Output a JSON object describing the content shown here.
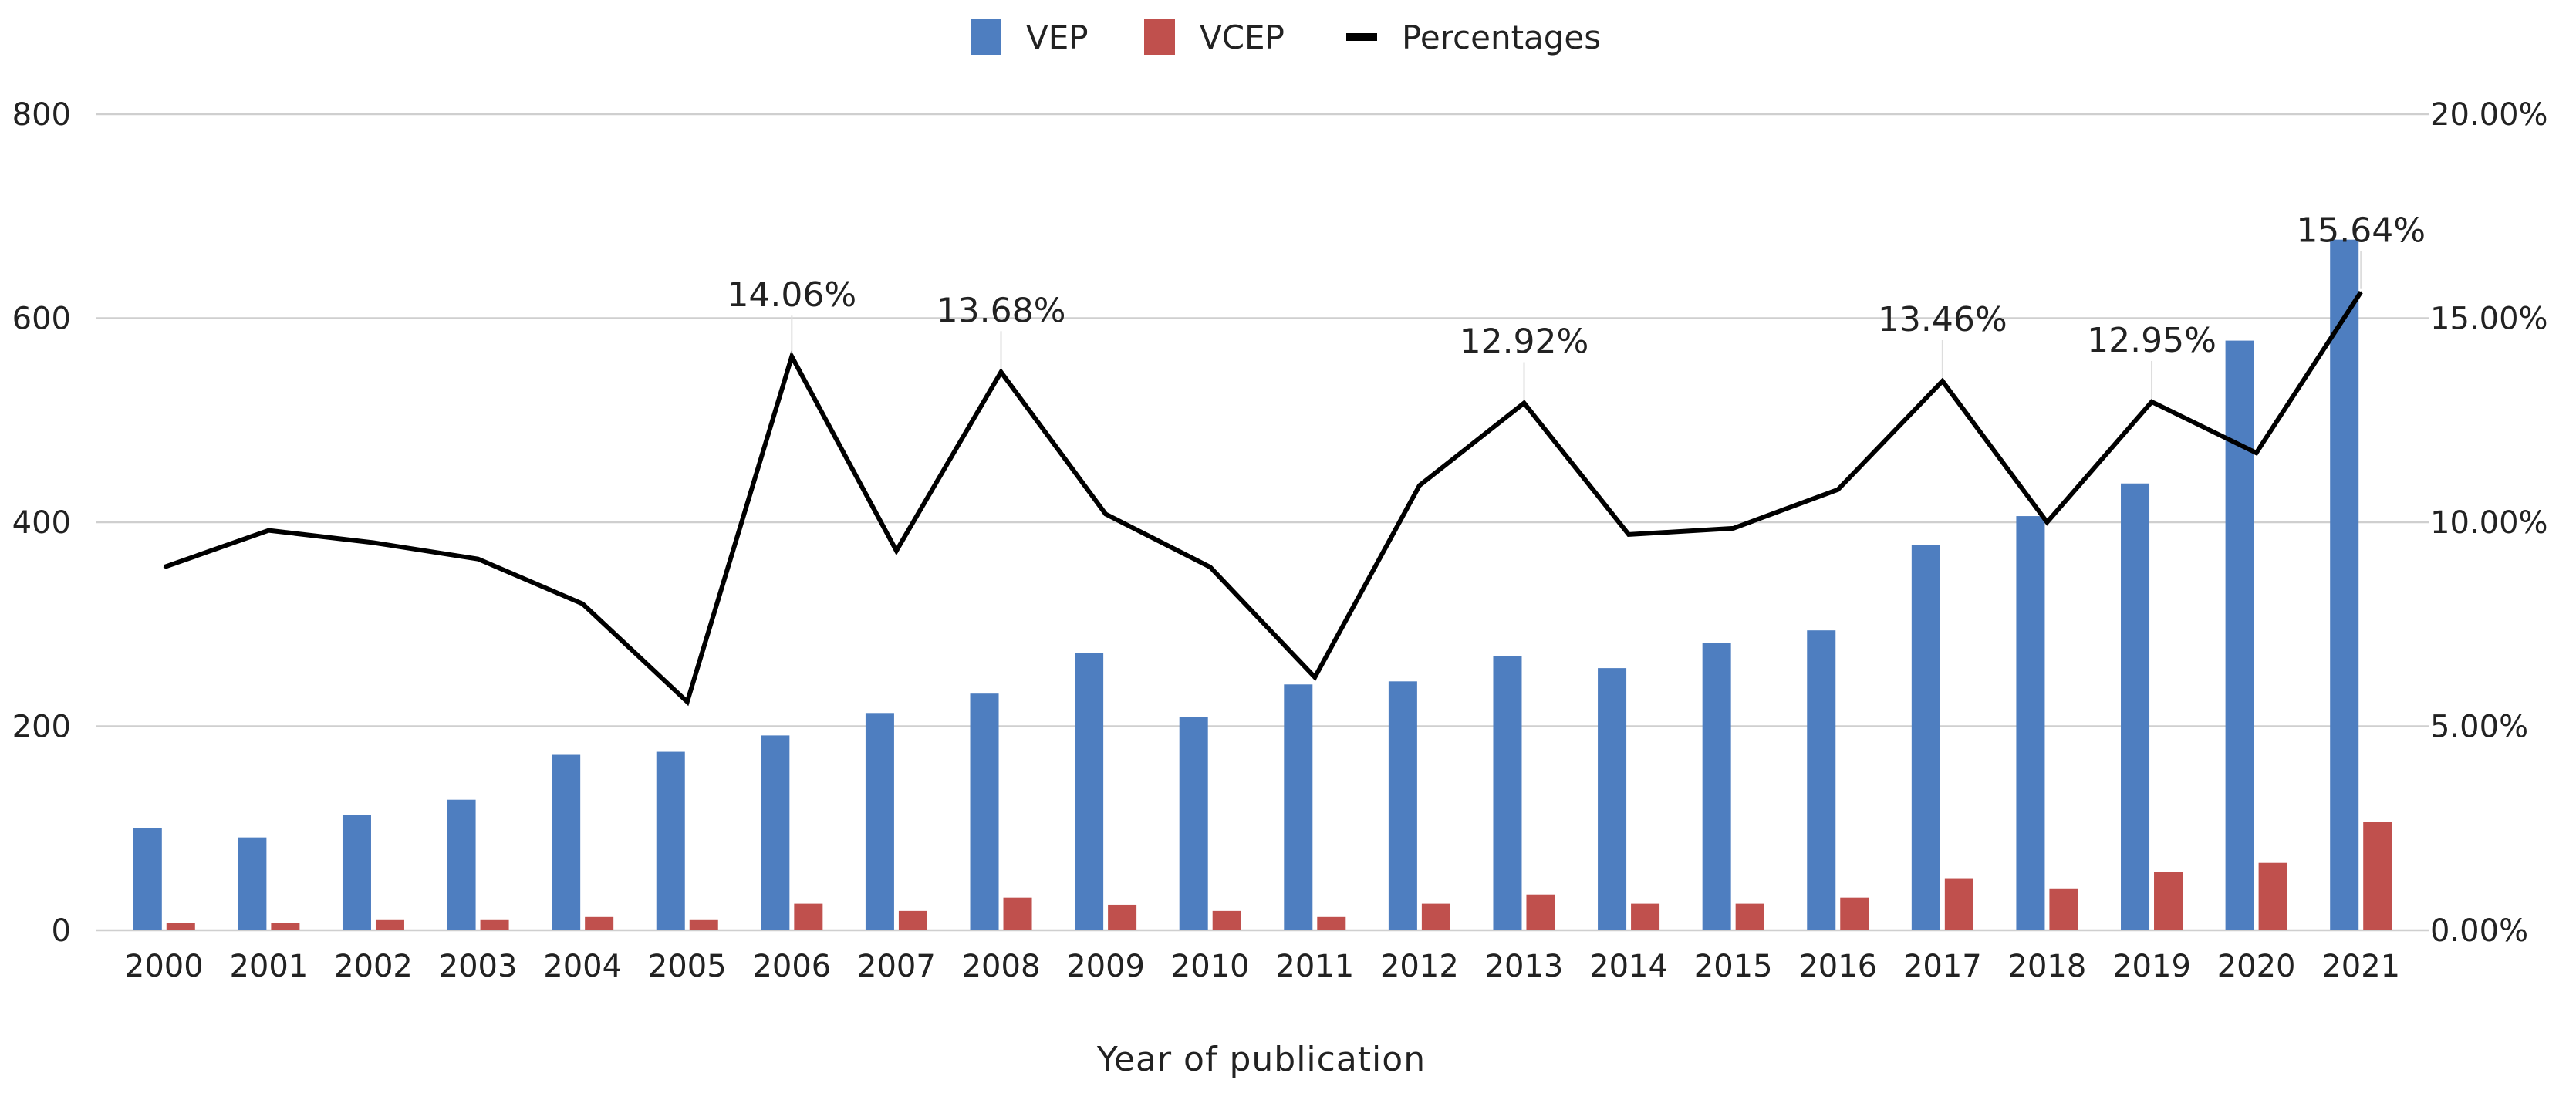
{
  "chart_data": {
    "type": "bar",
    "title": "",
    "xlabel": "Year of publication",
    "ylabel": "",
    "y2label": "",
    "categories": [
      "2000",
      "2001",
      "2002",
      "2003",
      "2004",
      "2005",
      "2006",
      "2007",
      "2008",
      "2009",
      "2010",
      "2011",
      "2012",
      "2013",
      "2014",
      "2015",
      "2016",
      "2017",
      "2018",
      "2019",
      "2020",
      "2021"
    ],
    "ylim": [
      0,
      800
    ],
    "yticks": [
      0,
      200,
      400,
      600,
      800
    ],
    "yticklabels": [
      "0",
      "200",
      "400",
      "600",
      "800"
    ],
    "y2lim": [
      0,
      20
    ],
    "y2ticks": [
      0,
      5,
      10,
      15,
      20
    ],
    "y2ticklabels": [
      "0.00%",
      "5.00%",
      "10.00%",
      "15.00%",
      "20.00%"
    ],
    "grid": true,
    "legend_position": "top-center",
    "series": [
      {
        "name": "VEP",
        "kind": "bar",
        "axis": "left",
        "color": "#4e7ec0",
        "values": [
          100,
          91,
          113,
          128,
          172,
          175,
          191,
          213,
          232,
          272,
          209,
          241,
          244,
          269,
          257,
          282,
          294,
          378,
          406,
          438,
          578,
          677
        ]
      },
      {
        "name": "VCEP",
        "kind": "bar",
        "axis": "left",
        "color": "#c0504d",
        "values": [
          7,
          7,
          10,
          10,
          13,
          10,
          26,
          19,
          32,
          25,
          19,
          13,
          26,
          35,
          26,
          26,
          32,
          51,
          41,
          57,
          66,
          106
        ]
      },
      {
        "name": "Percentages",
        "kind": "line",
        "axis": "right",
        "color": "#000000",
        "values": [
          8.9,
          9.8,
          9.5,
          9.1,
          8.0,
          5.6,
          14.06,
          9.3,
          13.68,
          10.2,
          8.9,
          6.2,
          10.9,
          12.92,
          9.7,
          9.85,
          10.8,
          13.46,
          10.0,
          12.95,
          11.7,
          15.64
        ]
      }
    ],
    "annotations": [
      {
        "category": "2006",
        "text": "14.06%"
      },
      {
        "category": "2008",
        "text": "13.68%"
      },
      {
        "category": "2013",
        "text": "12.92%"
      },
      {
        "category": "2017",
        "text": "13.46%"
      },
      {
        "category": "2019",
        "text": "12.95%"
      },
      {
        "category": "2021",
        "text": "15.64%"
      }
    ]
  }
}
